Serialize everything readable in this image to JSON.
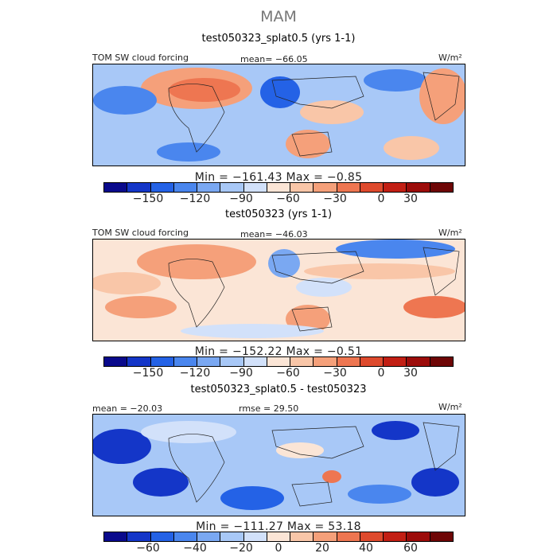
{
  "title": "MAM",
  "chart_data": [
    {
      "type": "heatmap",
      "title": "test050323_splat0.5 (yrs 1-1)",
      "variable": "TOM SW cloud forcing",
      "mean_label": "mean= −66.05",
      "units": "W/m²",
      "min": -161.43,
      "max": -0.85,
      "min_max_label": "Min = −161.43 Max = −0.85",
      "levels": [
        -165,
        -150,
        -135,
        -120,
        -105,
        -90,
        -75,
        -60,
        -45,
        -30,
        -15,
        0,
        15,
        30,
        45
      ],
      "tick_labels": [
        "−150",
        "−120",
        "−90",
        "−60",
        "−30",
        "0",
        "30"
      ],
      "tick_values": [
        -150,
        -120,
        -90,
        -60,
        -30,
        0,
        30
      ],
      "colors": [
        "#0a0a8c",
        "#1436c8",
        "#2462e6",
        "#4a86ee",
        "#7aa8f2",
        "#a8c8f7",
        "#d2e1fa",
        "#fbe5d6",
        "#f9c6a8",
        "#f5a07a",
        "#ee7651",
        "#de4a2d",
        "#c21f14",
        "#9c0c0a",
        "#6e0606"
      ]
    },
    {
      "type": "heatmap",
      "title": "test050323 (yrs 1-1)",
      "variable": "TOM SW cloud forcing",
      "mean_label": "mean= −46.03",
      "units": "W/m²",
      "min": -152.22,
      "max": -0.51,
      "min_max_label": "Min = −152.22 Max = −0.51",
      "levels": [
        -165,
        -150,
        -135,
        -120,
        -105,
        -90,
        -75,
        -60,
        -45,
        -30,
        -15,
        0,
        15,
        30,
        45
      ],
      "tick_labels": [
        "−150",
        "−120",
        "−90",
        "−60",
        "−30",
        "0",
        "30"
      ],
      "tick_values": [
        -150,
        -120,
        -90,
        -60,
        -30,
        0,
        30
      ],
      "colors": [
        "#0a0a8c",
        "#1436c8",
        "#2462e6",
        "#4a86ee",
        "#7aa8f2",
        "#a8c8f7",
        "#d2e1fa",
        "#fbe5d6",
        "#f9c6a8",
        "#f5a07a",
        "#ee7651",
        "#de4a2d",
        "#c21f14",
        "#9c0c0a",
        "#6e0606"
      ]
    },
    {
      "type": "heatmap",
      "title": "test050323_splat0.5 - test050323",
      "mean_label": "mean = −20.03",
      "rmse_label": "rmse = 29.50",
      "units": "W/m²",
      "min": -111.27,
      "max": 53.18,
      "min_max_label": "Min = −111.27 Max = 53.18",
      "levels": [
        -80,
        -70,
        -60,
        -50,
        -40,
        -30,
        -20,
        -10,
        0,
        10,
        20,
        30,
        40,
        50,
        60,
        70
      ],
      "tick_labels": [
        "−60",
        "−40",
        "−20",
        "0",
        "20",
        "40",
        "60"
      ],
      "tick_values": [
        -60,
        -40,
        -20,
        0,
        20,
        40,
        60
      ],
      "colors": [
        "#0a0a8c",
        "#1436c8",
        "#2462e6",
        "#4a86ee",
        "#7aa8f2",
        "#a8c8f7",
        "#d2e1fa",
        "#fbe5d6",
        "#f9c6a8",
        "#f5a07a",
        "#ee7651",
        "#de4a2d",
        "#c21f14",
        "#9c0c0a",
        "#6e0606"
      ]
    }
  ]
}
